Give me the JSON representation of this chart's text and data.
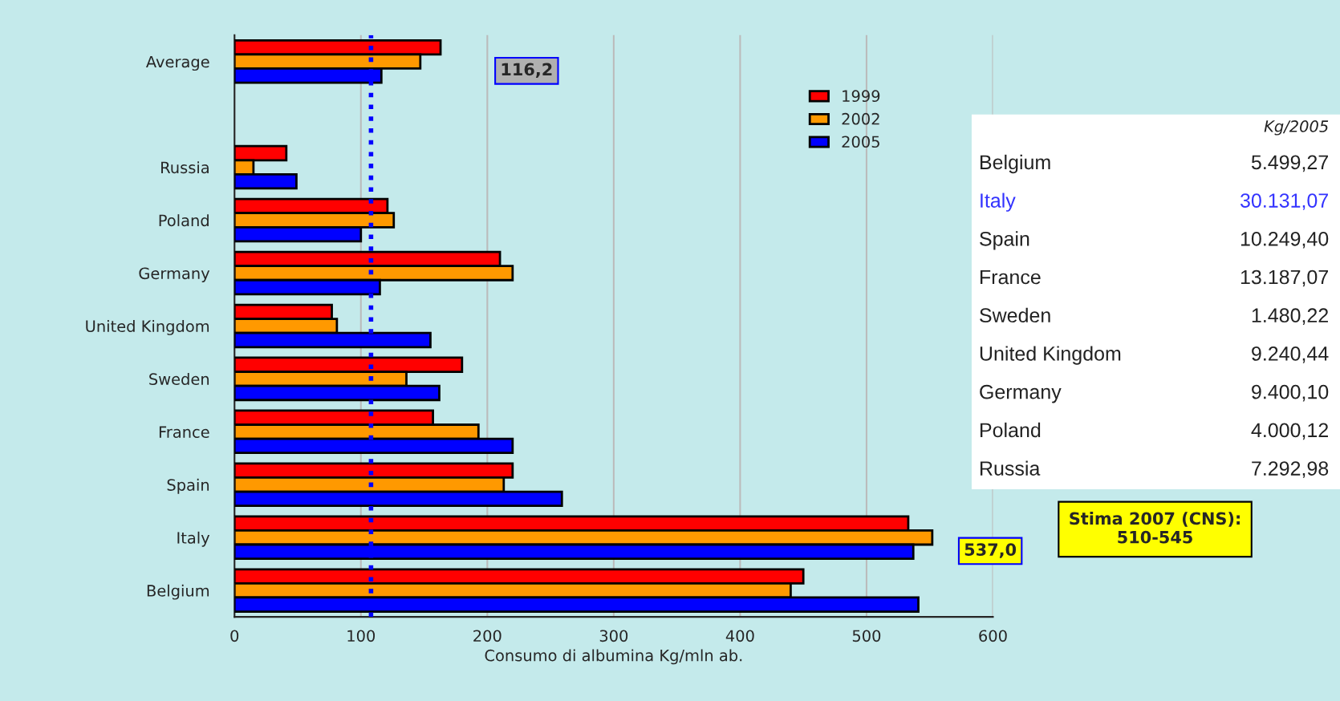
{
  "chart_data": [
    {
      "type": "bar",
      "orientation": "horizontal",
      "categories": [
        "Average",
        null,
        "Russia",
        "Poland",
        "Germany",
        "United Kingdom",
        "Sweden",
        "France",
        "Spain",
        "Italy",
        "Belgium"
      ],
      "series": [
        {
          "name": "1999",
          "color": "#ff0000",
          "values": [
            163,
            null,
            41,
            121,
            210,
            77,
            180,
            157,
            220,
            533,
            450
          ]
        },
        {
          "name": "2002",
          "color": "#ff9900",
          "values": [
            147,
            null,
            15,
            126,
            220,
            81,
            136,
            193,
            213,
            552,
            440
          ]
        },
        {
          "name": "2005",
          "color": "#0000ff",
          "values": [
            116.2,
            null,
            49,
            100,
            115,
            155,
            162,
            220,
            259,
            537,
            541
          ]
        }
      ],
      "xlim": [
        0,
        600
      ],
      "xticks": [
        0,
        100,
        200,
        300,
        400,
        500,
        600
      ],
      "grid": "x",
      "legend": "top right",
      "xlabel": "Consumo di albumina Kg/mln ab.",
      "ref_lines": [
        {
          "axis": "x",
          "value": 108,
          "color": "#0000ff",
          "line_style": "dotted"
        }
      ],
      "annotations": [
        "116,2",
        "537,0",
        "Stima 2007 (CNS):\n510-545"
      ]
    },
    {
      "type": "other",
      "title": "Kg/2005",
      "categories": [
        "Belgium",
        "Italy",
        "Spain",
        "France",
        "Sweden",
        "United Kingdom",
        "Germany",
        "Poland",
        "Russia"
      ],
      "value_labels": [
        "5.499,27",
        "30.131,07",
        "10.249,40",
        "13.187,07",
        "1.480,22",
        "9.240,44",
        "9.400,10",
        "4.000,12",
        "7.292,98"
      ],
      "colors": [
        "#222222",
        "#3333ff",
        "#222222",
        "#222222",
        "#222222",
        "#222222",
        "#222222",
        "#222222",
        "#222222"
      ]
    }
  ]
}
